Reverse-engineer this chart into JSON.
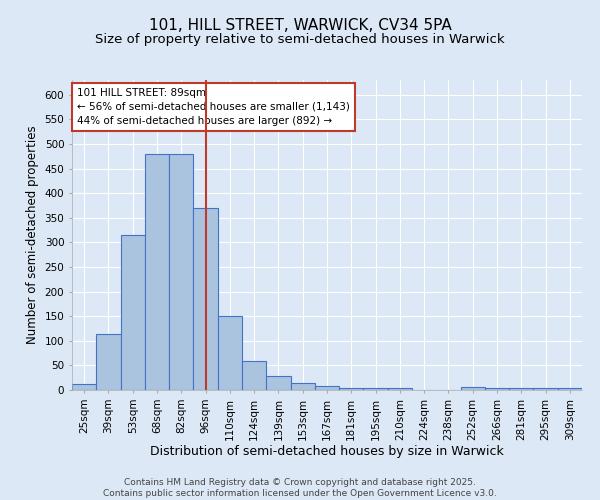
{
  "title1": "101, HILL STREET, WARWICK, CV34 5PA",
  "title2": "Size of property relative to semi-detached houses in Warwick",
  "xlabel": "Distribution of semi-detached houses by size in Warwick",
  "ylabel": "Number of semi-detached properties",
  "categories": [
    "25sqm",
    "39sqm",
    "53sqm",
    "68sqm",
    "82sqm",
    "96sqm",
    "110sqm",
    "124sqm",
    "139sqm",
    "153sqm",
    "167sqm",
    "181sqm",
    "195sqm",
    "210sqm",
    "224sqm",
    "238sqm",
    "252sqm",
    "266sqm",
    "281sqm",
    "295sqm",
    "309sqm"
  ],
  "values": [
    12,
    113,
    315,
    479,
    479,
    370,
    150,
    58,
    29,
    15,
    9,
    4,
    4,
    4,
    0,
    0,
    6,
    4,
    4,
    4,
    4
  ],
  "bar_color": "#aac4e0",
  "bar_edge_color": "#4472c4",
  "bg_color": "#dce8f5",
  "grid_color": "#ffffff",
  "vline_index": 5,
  "vline_color": "#c0392b",
  "annotation_text": "101 HILL STREET: 89sqm\n← 56% of semi-detached houses are smaller (1,143)\n44% of semi-detached houses are larger (892) →",
  "annotation_box_color": "#ffffff",
  "annotation_box_edge": "#c0392b",
  "ylim": [
    0,
    630
  ],
  "yticks": [
    0,
    50,
    100,
    150,
    200,
    250,
    300,
    350,
    400,
    450,
    500,
    550,
    600
  ],
  "footer": "Contains HM Land Registry data © Crown copyright and database right 2025.\nContains public sector information licensed under the Open Government Licence v3.0.",
  "title1_fontsize": 11,
  "title2_fontsize": 9.5,
  "xlabel_fontsize": 9,
  "ylabel_fontsize": 8.5,
  "tick_fontsize": 7.5,
  "annotation_fontsize": 7.5,
  "footer_fontsize": 6.5
}
